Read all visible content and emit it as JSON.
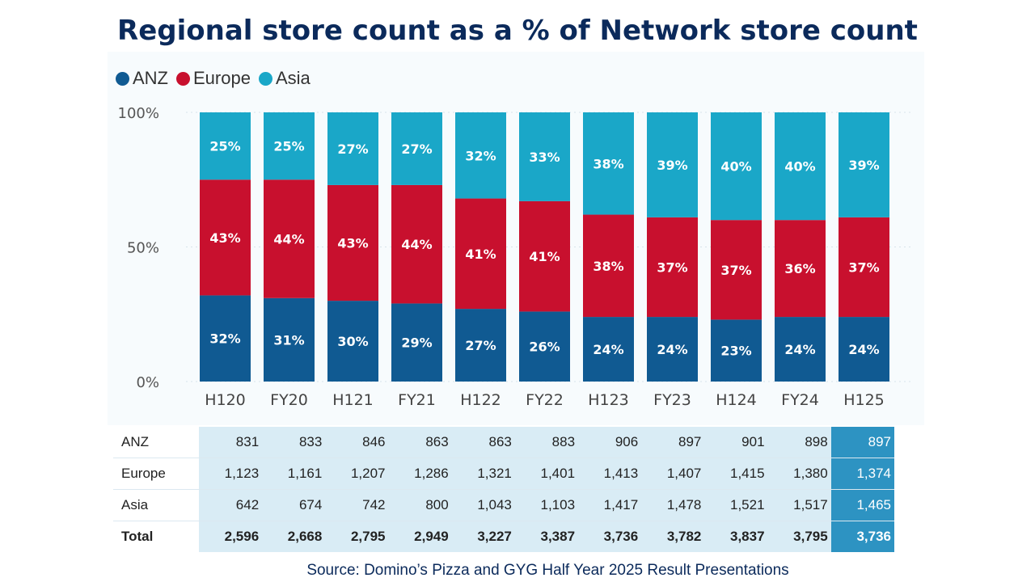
{
  "title": "Regional store count as a % of Network store count",
  "legend": [
    {
      "label": "ANZ",
      "color": "#105a92"
    },
    {
      "label": "Europe",
      "color": "#c8102e"
    },
    {
      "label": "Asia",
      "color": "#1aa7c8"
    }
  ],
  "chart_data": {
    "type": "bar",
    "stacked": true,
    "title": "Regional store count as a % of Network store count",
    "categories": [
      "H120",
      "FY20",
      "H121",
      "FY21",
      "H122",
      "FY22",
      "H123",
      "FY23",
      "H124",
      "FY24",
      "H125"
    ],
    "series": [
      {
        "name": "ANZ",
        "color": "#105a92",
        "values": [
          32,
          31,
          30,
          29,
          27,
          26,
          24,
          24,
          23,
          24,
          24
        ]
      },
      {
        "name": "Europe",
        "color": "#c8102e",
        "values": [
          43,
          44,
          43,
          44,
          41,
          41,
          38,
          37,
          37,
          36,
          37
        ]
      },
      {
        "name": "Asia",
        "color": "#1aa7c8",
        "values": [
          25,
          25,
          27,
          27,
          32,
          33,
          38,
          39,
          40,
          40,
          39
        ]
      }
    ],
    "yticks": [
      "0%",
      "50%",
      "100%"
    ],
    "ylim": [
      0,
      100
    ],
    "legend_position": "top-left"
  },
  "table": {
    "rows": [
      {
        "label": "ANZ",
        "values": [
          "831",
          "833",
          "846",
          "863",
          "863",
          "883",
          "906",
          "897",
          "901",
          "898",
          "897"
        ]
      },
      {
        "label": "Europe",
        "values": [
          "1,123",
          "1,161",
          "1,207",
          "1,286",
          "1,321",
          "1,401",
          "1,413",
          "1,407",
          "1,415",
          "1,380",
          "1,374"
        ]
      },
      {
        "label": "Asia",
        "values": [
          "642",
          "674",
          "742",
          "800",
          "1,043",
          "1,103",
          "1,417",
          "1,478",
          "1,521",
          "1,517",
          "1,465"
        ]
      },
      {
        "label": "Total",
        "values": [
          "2,596",
          "2,668",
          "2,795",
          "2,949",
          "3,227",
          "3,387",
          "3,736",
          "3,782",
          "3,837",
          "3,795",
          "3,736"
        ]
      }
    ]
  },
  "source": "Source: Domino’s Pizza and GYG Half Year 2025 Result Presentations"
}
